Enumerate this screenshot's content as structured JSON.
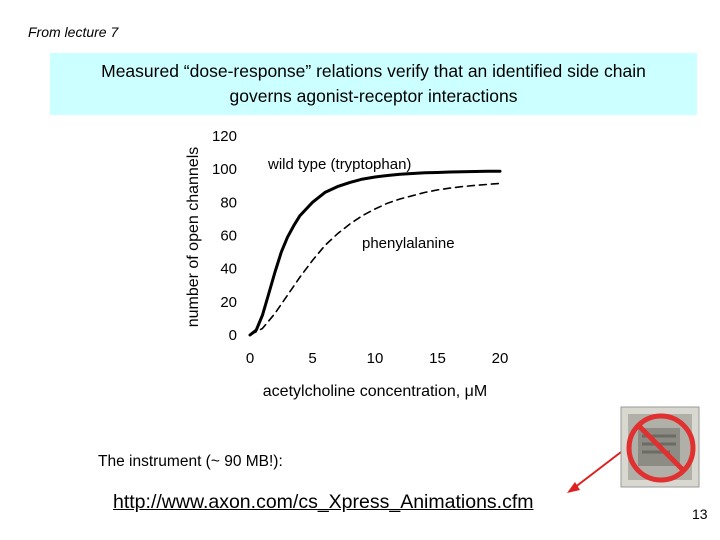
{
  "slide": {
    "note": "From lecture 7",
    "title_line1": "Measured “dose-response” relations verify that an identified side chain",
    "title_line2": "governs agonist-receptor interactions",
    "instrument_text": "The instrument (~ 90 MB!):",
    "link_text": "http://www.axon.com/cs_Xpress_Animations.cfm",
    "page_number": "13"
  },
  "colors": {
    "banner": "#ccffff",
    "arrow": "#e02020",
    "prohibition": "#e03030",
    "curve": "#000000"
  },
  "icons": {
    "prohibition": "no-symbol-icon",
    "thumbnail": "instrument-thumbnail"
  },
  "chart_data": {
    "type": "line",
    "xlabel": "acetylcholine concentration, μM",
    "ylabel": "number of open channels",
    "xlim": [
      0,
      20
    ],
    "ylim": [
      0,
      120
    ],
    "xticks": [
      0,
      5,
      10,
      15,
      20
    ],
    "yticks": [
      0,
      20,
      40,
      60,
      80,
      100,
      120
    ],
    "grid": false,
    "series": [
      {
        "name": "wild type (tryptophan)",
        "style": "solid",
        "x": [
          0,
          0.5,
          1,
          1.5,
          2,
          2.5,
          3,
          3.5,
          4,
          5,
          6,
          7,
          8,
          9,
          10,
          11,
          12,
          13,
          14,
          15,
          16,
          17,
          18,
          19,
          20
        ],
        "y": [
          0,
          3,
          12,
          25,
          38,
          50,
          59,
          66,
          72,
          80,
          86,
          89.5,
          92,
          94,
          95.3,
          96.2,
          96.9,
          97.4,
          97.8,
          98,
          98.3,
          98.4,
          98.6,
          98.7,
          98.8
        ]
      },
      {
        "name": "phenylalanine",
        "style": "dashed",
        "x": [
          0,
          1,
          2,
          3,
          4,
          5,
          6,
          7,
          8,
          9,
          10,
          11,
          12,
          13,
          14,
          15,
          16,
          17,
          18,
          19,
          20
        ],
        "y": [
          0,
          4,
          13,
          24,
          35,
          45,
          54,
          61,
          67,
          72,
          76,
          79.5,
          82,
          84,
          86,
          87.5,
          88.6,
          89.5,
          90.2,
          90.8,
          91.4
        ]
      }
    ]
  }
}
